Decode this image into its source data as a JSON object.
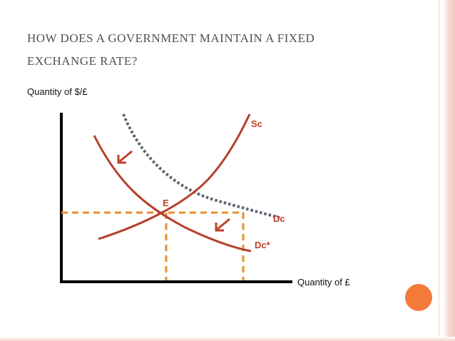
{
  "slide": {
    "title_line1": "How does a government maintain a fixed",
    "title_line2": "exchange rate?"
  },
  "diagram": {
    "y_axis_label": "Quantity of $/£",
    "x_axis_label": "Quantity of £",
    "labels": {
      "supply": "Sc",
      "demand": "Dc",
      "demand_new": "Dc*",
      "equilibrium": "E"
    }
  },
  "colors": {
    "curve": "#b5412b",
    "dotted_curve": "#5f6670",
    "guide_lines": "#ef8a2e",
    "arrow": "#c0402a",
    "accent_dot": "#f47a3a"
  }
}
